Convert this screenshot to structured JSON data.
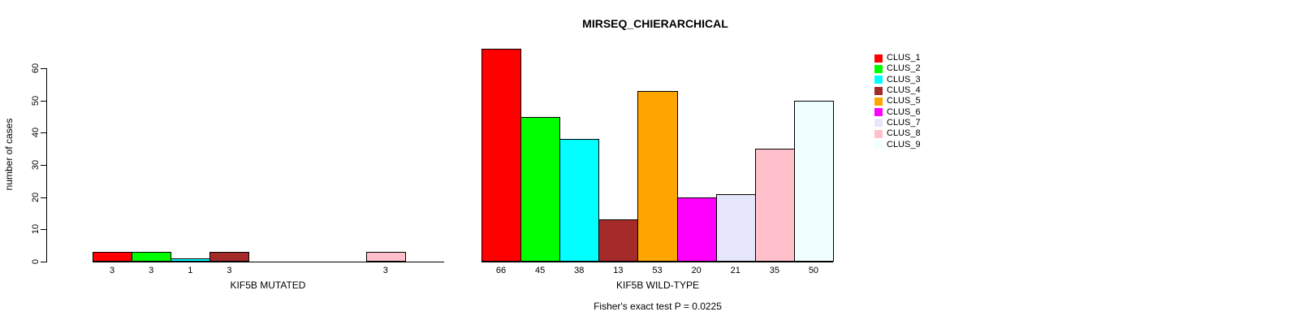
{
  "title": "MIRSEQ_CHIERARCHICAL",
  "annotation": "Fisher's exact test P = 0.0225",
  "y_axis": {
    "label": "number of cases",
    "ticks": [
      0,
      10,
      20,
      30,
      40,
      50,
      60
    ]
  },
  "legend": {
    "position": "right",
    "items": [
      {
        "label": "CLUS_1",
        "color": "#FF0000"
      },
      {
        "label": "CLUS_2",
        "color": "#00FF00"
      },
      {
        "label": "CLUS_3",
        "color": "#00FFFF"
      },
      {
        "label": "CLUS_4",
        "color": "#A52A2A"
      },
      {
        "label": "CLUS_5",
        "color": "#FFA500"
      },
      {
        "label": "CLUS_6",
        "color": "#FF00FF"
      },
      {
        "label": "CLUS_7",
        "color": "#E6E6FA"
      },
      {
        "label": "CLUS_8",
        "color": "#FFC0CB"
      },
      {
        "label": "CLUS_9",
        "color": "#F0FFFF"
      }
    ]
  },
  "chart_data": [
    {
      "type": "bar",
      "title": "MIRSEQ_CHIERARCHICAL",
      "xlabel": "KIF5B MUTATED",
      "ylabel": "number of cases",
      "ylim": [
        0,
        66
      ],
      "yticks": [
        0,
        10,
        20,
        30,
        40,
        50,
        60
      ],
      "grid": false,
      "legend_position": "right",
      "categories": [
        "CLUS_1",
        "CLUS_2",
        "CLUS_3",
        "CLUS_4",
        "CLUS_5",
        "CLUS_6",
        "CLUS_7",
        "CLUS_8",
        "CLUS_9"
      ],
      "values": [
        3,
        3,
        1,
        3,
        0,
        0,
        0,
        3,
        0
      ],
      "colors": [
        "#FF0000",
        "#00FF00",
        "#00FFFF",
        "#A52A2A",
        "#FFA500",
        "#FF00FF",
        "#E6E6FA",
        "#FFC0CB",
        "#F0FFFF"
      ],
      "bar_labels": [
        "3",
        "3",
        "1",
        "3",
        "",
        "",
        "",
        "3",
        ""
      ]
    },
    {
      "type": "bar",
      "title": "MIRSEQ_CHIERARCHICAL",
      "xlabel": "KIF5B WILD-TYPE",
      "ylabel": "number of cases",
      "ylim": [
        0,
        66
      ],
      "yticks": [
        0,
        10,
        20,
        30,
        40,
        50,
        60
      ],
      "grid": false,
      "legend_position": "right",
      "categories": [
        "CLUS_1",
        "CLUS_2",
        "CLUS_3",
        "CLUS_4",
        "CLUS_5",
        "CLUS_6",
        "CLUS_7",
        "CLUS_8",
        "CLUS_9"
      ],
      "values": [
        66,
        45,
        38,
        13,
        53,
        20,
        21,
        35,
        50
      ],
      "colors": [
        "#FF0000",
        "#00FF00",
        "#00FFFF",
        "#A52A2A",
        "#FFA500",
        "#FF00FF",
        "#E6E6FA",
        "#FFC0CB",
        "#F0FFFF"
      ],
      "bar_labels": [
        "66",
        "45",
        "38",
        "13",
        "53",
        "20",
        "21",
        "35",
        "50"
      ]
    }
  ]
}
